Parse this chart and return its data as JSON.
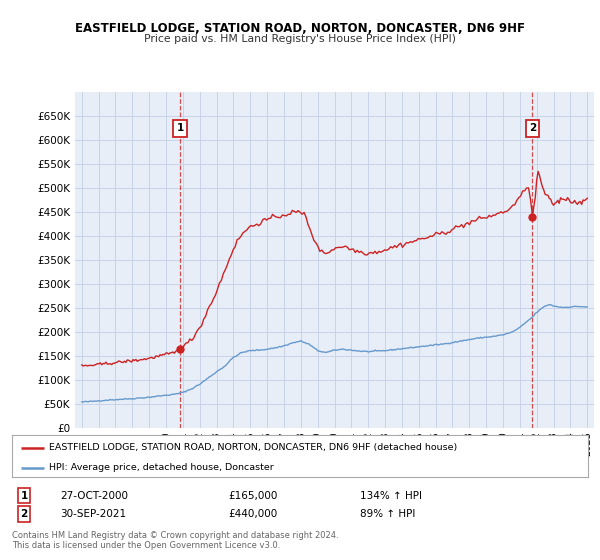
{
  "title_line1": "EASTFIELD LODGE, STATION ROAD, NORTON, DONCASTER, DN6 9HF",
  "title_line2": "Price paid vs. HM Land Registry's House Price Index (HPI)",
  "background_color": "#ffffff",
  "plot_bg_color": "#e8eef8",
  "grid_color": "#c8d4e8",
  "red_color": "#cc2222",
  "blue_color": "#6699cc",
  "sale1_time": 2000.833,
  "sale1_price": 165000,
  "sale2_time": 2021.75,
  "sale2_price": 440000,
  "legend_red": "EASTFIELD LODGE, STATION ROAD, NORTON, DONCASTER, DN6 9HF (detached house)",
  "legend_blue": "HPI: Average price, detached house, Doncaster",
  "footer": "Contains HM Land Registry data © Crown copyright and database right 2024.\nThis data is licensed under the Open Government Licence v3.0.",
  "yticks": [
    0,
    50000,
    100000,
    150000,
    200000,
    250000,
    300000,
    350000,
    400000,
    450000,
    500000,
    550000,
    600000,
    650000
  ],
  "table_row1": [
    "1",
    "27-OCT-2000",
    "£165,000",
    "134% ↑ HPI"
  ],
  "table_row2": [
    "2",
    "30-SEP-2021",
    "£440,000",
    "89% ↑ HPI"
  ],
  "hpi_keypoints": [
    [
      1995.0,
      55000
    ],
    [
      1995.5,
      56000
    ],
    [
      1996.0,
      57500
    ],
    [
      1996.5,
      59000
    ],
    [
      1997.0,
      60000
    ],
    [
      1997.5,
      61000
    ],
    [
      1998.0,
      62000
    ],
    [
      1998.5,
      63500
    ],
    [
      1999.0,
      65000
    ],
    [
      1999.5,
      67000
    ],
    [
      2000.0,
      69000
    ],
    [
      2000.5,
      71000
    ],
    [
      2001.0,
      75000
    ],
    [
      2001.5,
      82000
    ],
    [
      2002.0,
      92000
    ],
    [
      2002.5,
      105000
    ],
    [
      2003.0,
      118000
    ],
    [
      2003.5,
      130000
    ],
    [
      2004.0,
      148000
    ],
    [
      2004.5,
      158000
    ],
    [
      2005.0,
      162000
    ],
    [
      2005.5,
      163000
    ],
    [
      2006.0,
      165000
    ],
    [
      2006.5,
      168000
    ],
    [
      2007.0,
      172000
    ],
    [
      2007.5,
      178000
    ],
    [
      2008.0,
      182000
    ],
    [
      2008.5,
      175000
    ],
    [
      2009.0,
      162000
    ],
    [
      2009.5,
      158000
    ],
    [
      2010.0,
      163000
    ],
    [
      2010.5,
      165000
    ],
    [
      2011.0,
      163000
    ],
    [
      2011.5,
      161000
    ],
    [
      2012.0,
      160000
    ],
    [
      2012.5,
      161000
    ],
    [
      2013.0,
      162000
    ],
    [
      2013.5,
      164000
    ],
    [
      2014.0,
      166000
    ],
    [
      2014.5,
      168000
    ],
    [
      2015.0,
      170000
    ],
    [
      2015.5,
      172000
    ],
    [
      2016.0,
      174000
    ],
    [
      2016.5,
      176000
    ],
    [
      2017.0,
      179000
    ],
    [
      2017.5,
      182000
    ],
    [
      2018.0,
      185000
    ],
    [
      2018.5,
      188000
    ],
    [
      2019.0,
      190000
    ],
    [
      2019.5,
      192000
    ],
    [
      2020.0,
      195000
    ],
    [
      2020.5,
      200000
    ],
    [
      2021.0,
      210000
    ],
    [
      2021.5,
      225000
    ],
    [
      2021.75,
      232000
    ],
    [
      2022.0,
      242000
    ],
    [
      2022.5,
      255000
    ],
    [
      2022.75,
      258000
    ],
    [
      2023.0,
      255000
    ],
    [
      2023.5,
      252000
    ],
    [
      2024.0,
      253000
    ],
    [
      2024.5,
      254000
    ],
    [
      2025.0,
      253000
    ]
  ],
  "red_keypoints_before": [
    [
      1995.0,
      130000
    ],
    [
      1995.5,
      131000
    ],
    [
      1996.0,
      133000
    ],
    [
      1996.5,
      135000
    ],
    [
      1997.0,
      137000
    ],
    [
      1997.5,
      139000
    ],
    [
      1998.0,
      141000
    ],
    [
      1998.5,
      143000
    ],
    [
      1999.0,
      146000
    ],
    [
      1999.5,
      150000
    ],
    [
      2000.0,
      154000
    ],
    [
      2000.5,
      158000
    ],
    [
      2000.833,
      165000
    ]
  ],
  "red_keypoints_between": [
    [
      2000.833,
      165000
    ],
    [
      2001.0,
      168000
    ],
    [
      2001.5,
      185000
    ],
    [
      2002.0,
      210000
    ],
    [
      2002.5,
      248000
    ],
    [
      2003.0,
      285000
    ],
    [
      2003.5,
      330000
    ],
    [
      2004.0,
      375000
    ],
    [
      2004.5,
      405000
    ],
    [
      2005.0,
      420000
    ],
    [
      2005.5,
      428000
    ],
    [
      2006.0,
      435000
    ],
    [
      2006.5,
      440000
    ],
    [
      2007.0,
      445000
    ],
    [
      2007.5,
      450000
    ],
    [
      2008.0,
      450000
    ],
    [
      2008.25,
      445000
    ],
    [
      2008.5,
      420000
    ],
    [
      2009.0,
      375000
    ],
    [
      2009.5,
      365000
    ],
    [
      2010.0,
      375000
    ],
    [
      2010.5,
      380000
    ],
    [
      2011.0,
      373000
    ],
    [
      2011.5,
      368000
    ],
    [
      2012.0,
      365000
    ],
    [
      2012.5,
      368000
    ],
    [
      2013.0,
      372000
    ],
    [
      2013.5,
      378000
    ],
    [
      2014.0,
      383000
    ],
    [
      2014.5,
      388000
    ],
    [
      2015.0,
      393000
    ],
    [
      2015.5,
      398000
    ],
    [
      2016.0,
      403000
    ],
    [
      2016.5,
      408000
    ],
    [
      2017.0,
      415000
    ],
    [
      2017.5,
      422000
    ],
    [
      2018.0,
      428000
    ],
    [
      2018.5,
      435000
    ],
    [
      2019.0,
      440000
    ],
    [
      2019.5,
      445000
    ],
    [
      2020.0,
      450000
    ],
    [
      2020.5,
      460000
    ],
    [
      2021.0,
      480000
    ],
    [
      2021.5,
      510000
    ],
    [
      2021.75,
      440000
    ]
  ],
  "red_keypoints_after": [
    [
      2021.75,
      440000
    ],
    [
      2021.9,
      480000
    ],
    [
      2022.0,
      510000
    ],
    [
      2022.1,
      540000
    ],
    [
      2022.2,
      520000
    ],
    [
      2022.3,
      505000
    ],
    [
      2022.5,
      490000
    ],
    [
      2022.75,
      475000
    ],
    [
      2023.0,
      468000
    ],
    [
      2023.25,
      472000
    ],
    [
      2023.5,
      478000
    ],
    [
      2023.75,
      480000
    ],
    [
      2024.0,
      475000
    ],
    [
      2024.25,
      470000
    ],
    [
      2024.5,
      472000
    ],
    [
      2024.75,
      476000
    ],
    [
      2025.0,
      474000
    ]
  ]
}
